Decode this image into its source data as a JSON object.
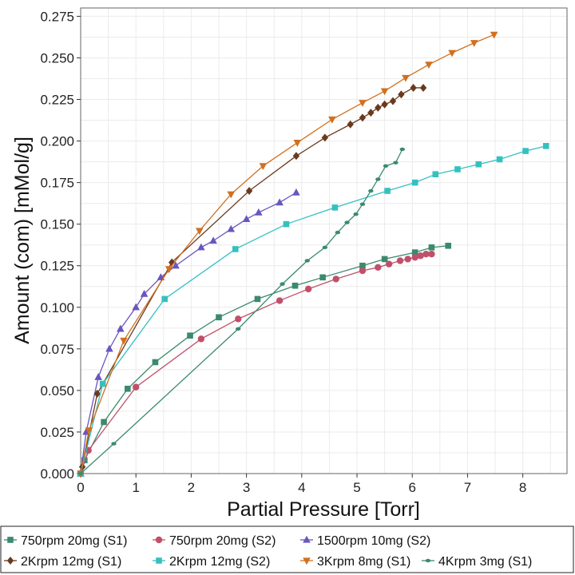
{
  "chart_data": {
    "type": "line",
    "title": "",
    "xlabel": "Partial Pressure [Torr]",
    "ylabel": "Amount (com) [mMol/g]",
    "xlim": [
      0,
      8.8
    ],
    "ylim": [
      0,
      0.28
    ],
    "xticks": [
      0,
      1,
      2,
      3,
      4,
      5,
      6,
      7,
      8
    ],
    "yticks": [
      0.0,
      0.025,
      0.05,
      0.075,
      0.1,
      0.125,
      0.15,
      0.175,
      0.2,
      0.225,
      0.25,
      0.275
    ],
    "xtick_labels": [
      "0",
      "1",
      "2",
      "3",
      "4",
      "5",
      "6",
      "7",
      "8"
    ],
    "ytick_labels": [
      "0.000",
      "0.025",
      "0.050",
      "0.075",
      "0.100",
      "0.125",
      "0.150",
      "0.175",
      "0.200",
      "0.225",
      "0.250",
      "0.275"
    ],
    "grid": true,
    "legend_position": "bottom",
    "series": [
      {
        "name": "750rpm 20mg (S1)",
        "color": "#3a8a6e",
        "marker": "square",
        "x": [
          0,
          0.07,
          0.42,
          0.85,
          1.35,
          1.98,
          2.5,
          3.2,
          3.88,
          4.38,
          5.1,
          5.5,
          6.05,
          6.35,
          6.65
        ],
        "y": [
          0,
          0.008,
          0.031,
          0.051,
          0.067,
          0.083,
          0.094,
          0.105,
          0.113,
          0.118,
          0.125,
          0.129,
          0.133,
          0.136,
          0.137
        ]
      },
      {
        "name": "750rpm 20mg (S2)",
        "color": "#c0506a",
        "marker": "circle",
        "x": [
          0,
          0.14,
          1.0,
          2.18,
          2.85,
          3.6,
          4.12,
          4.62,
          5.1,
          5.38,
          5.58,
          5.78,
          5.92,
          6.05,
          6.15,
          6.25,
          6.35
        ],
        "y": [
          0,
          0.014,
          0.052,
          0.081,
          0.093,
          0.104,
          0.111,
          0.117,
          0.122,
          0.124,
          0.126,
          0.128,
          0.129,
          0.13,
          0.131,
          0.132,
          0.132
        ]
      },
      {
        "name": "1500rpm 10mg (S2)",
        "color": "#6a55c0",
        "marker": "triangle-up",
        "x": [
          0,
          0.1,
          0.32,
          0.52,
          0.72,
          1.0,
          1.15,
          1.45,
          1.72,
          2.18,
          2.4,
          2.72,
          3.0,
          3.22,
          3.6,
          3.9
        ],
        "y": [
          0,
          0.025,
          0.058,
          0.075,
          0.087,
          0.1,
          0.108,
          0.118,
          0.125,
          0.136,
          0.14,
          0.147,
          0.153,
          0.157,
          0.163,
          0.169
        ]
      },
      {
        "name": "2Krpm 12mg (S1)",
        "color": "#6b3a1e",
        "marker": "diamond",
        "x": [
          0,
          0.03,
          0.3,
          1.65,
          3.05,
          3.9,
          4.42,
          4.88,
          5.1,
          5.25,
          5.38,
          5.5,
          5.65,
          5.8,
          6.02,
          6.2
        ],
        "y": [
          0,
          0.004,
          0.048,
          0.127,
          0.17,
          0.191,
          0.202,
          0.21,
          0.214,
          0.217,
          0.22,
          0.222,
          0.224,
          0.228,
          0.232,
          0.232
        ]
      },
      {
        "name": "2Krpm 12mg (S2)",
        "color": "#35c0c0",
        "marker": "square",
        "x": [
          0,
          0.4,
          1.52,
          2.8,
          3.72,
          4.6,
          5.55,
          6.05,
          6.42,
          6.82,
          7.2,
          7.58,
          8.05,
          8.42
        ],
        "y": [
          0,
          0.054,
          0.105,
          0.135,
          0.15,
          0.16,
          0.17,
          0.175,
          0.18,
          0.183,
          0.186,
          0.189,
          0.194,
          0.197
        ]
      },
      {
        "name": "3Krpm 8mg (S1)",
        "color": "#d07020",
        "marker": "triangle-down",
        "x": [
          0,
          0.15,
          0.78,
          1.6,
          2.15,
          2.72,
          3.3,
          3.92,
          4.55,
          5.1,
          5.5,
          5.88,
          6.3,
          6.72,
          7.12,
          7.48
        ],
        "y": [
          0,
          0.026,
          0.08,
          0.123,
          0.146,
          0.168,
          0.185,
          0.199,
          0.213,
          0.223,
          0.23,
          0.238,
          0.246,
          0.253,
          0.259,
          0.264
        ]
      },
      {
        "name": "4Krpm 3mg (S1)",
        "color": "#3a8a6e",
        "marker": "small-ellipse",
        "x": [
          0,
          0.6,
          2.85,
          3.65,
          4.1,
          4.42,
          4.65,
          4.82,
          4.98,
          5.1,
          5.25,
          5.38,
          5.52,
          5.7,
          5.82
        ],
        "y": [
          0,
          0.018,
          0.087,
          0.114,
          0.128,
          0.136,
          0.145,
          0.151,
          0.156,
          0.162,
          0.17,
          0.177,
          0.185,
          0.187,
          0.195
        ]
      }
    ]
  }
}
